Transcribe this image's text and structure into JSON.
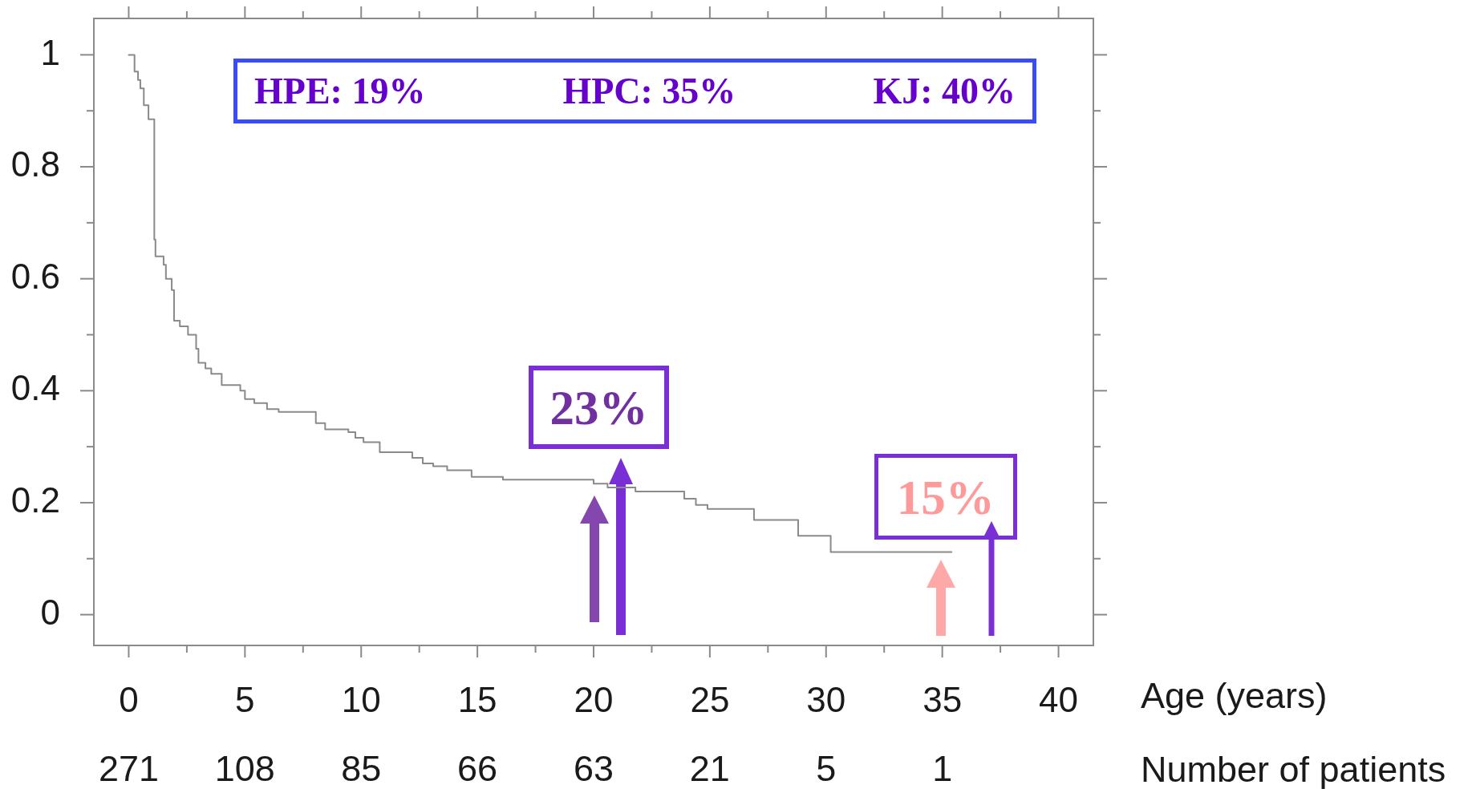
{
  "chart_data": {
    "type": "step",
    "xlabel": "Age (years)",
    "x": [
      0,
      0.25,
      0.4,
      0.5,
      0.65,
      0.85,
      1.1,
      1.15,
      1.5,
      1.6,
      1.85,
      1.95,
      2.2,
      2.55,
      2.9,
      3.0,
      3.3,
      3.55,
      4.0,
      4.8,
      5.0,
      5.4,
      5.95,
      6.45,
      8.05,
      8.45,
      9.45,
      9.75,
      10.1,
      10.8,
      12.2,
      12.65,
      13.1,
      13.7,
      14.75,
      16.1,
      20.0,
      20.6,
      21.8,
      23.9,
      24.4,
      24.9,
      26.9,
      28.8,
      30.2,
      35.4
    ],
    "values": [
      1.0,
      0.97,
      0.955,
      0.94,
      0.91,
      0.885,
      0.67,
      0.64,
      0.625,
      0.6,
      0.58,
      0.525,
      0.515,
      0.5,
      0.475,
      0.45,
      0.44,
      0.43,
      0.41,
      0.4,
      0.385,
      0.378,
      0.367,
      0.362,
      0.342,
      0.331,
      0.326,
      0.316,
      0.308,
      0.29,
      0.28,
      0.27,
      0.265,
      0.258,
      0.246,
      0.241,
      0.234,
      0.227,
      0.22,
      0.207,
      0.196,
      0.189,
      0.169,
      0.141,
      0.112,
      0.112
    ],
    "color": "#8a8a8a",
    "xlim": [
      -1.5,
      41.5
    ],
    "ylim": [
      -0.055,
      1.065
    ],
    "xticks": [
      0,
      {
        "value": 2.5,
        "label": null
      },
      5,
      {
        "value": 7.5,
        "label": null
      },
      10,
      {
        "value": 12.5,
        "label": null
      },
      15,
      {
        "value": 17.5,
        "label": null
      },
      20,
      {
        "value": 22.5,
        "label": null
      },
      25,
      {
        "value": 27.5,
        "label": null
      },
      30,
      {
        "value": 32.5,
        "label": null
      },
      35,
      {
        "value": 37.5,
        "label": null
      },
      40
    ],
    "yticks": [
      0,
      {
        "value": 0.1,
        "label": null
      },
      0.2,
      {
        "value": 0.3,
        "label": null
      },
      0.4,
      {
        "value": 0.5,
        "label": null
      },
      0.6,
      {
        "value": 0.7,
        "label": null
      },
      0.8,
      {
        "value": 0.9,
        "label": null
      },
      1
    ],
    "annotations": [
      "HPE: 19%",
      "HPC: 35%",
      "KJ: 40%",
      {
        "text": "23%",
        "x": 21,
        "y": 0.23
      },
      {
        "text": "15%",
        "x": 35,
        "y": 0.112
      },
      "271",
      "108",
      "85",
      "66",
      "63",
      "21",
      "5",
      "1",
      "Number of patients"
    ]
  }
}
